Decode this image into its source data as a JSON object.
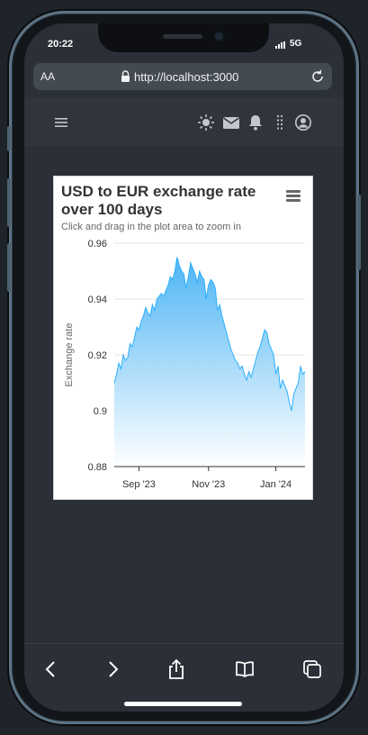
{
  "status": {
    "time": "20:22",
    "network": "5G"
  },
  "browser": {
    "text_size_label": "AA",
    "url": "http://localhost:3000"
  },
  "icons": {
    "menu": "hamburger-icon",
    "theme": "sun-icon",
    "mail": "envelope-icon",
    "notifications": "bell-icon",
    "apps": "grip-dots-icon",
    "account": "user-circle-icon",
    "back": "chevron-left-icon",
    "forward": "chevron-right-icon",
    "share": "share-icon",
    "bookmarks": "book-icon",
    "tabs": "tabs-icon"
  },
  "colors": {
    "series_line": "#2caffe",
    "area_top": "#4db5f5",
    "area_bottom": "#ffffff",
    "page_bg": "#2b3038"
  },
  "chart_data": {
    "type": "area",
    "title": "USD to EUR exchange rate over 100 days",
    "subtitle": "Click and drag in the plot area to zoom in",
    "ylabel": "Exchange rate",
    "xlabel": "",
    "ylim": [
      0.88,
      0.96
    ],
    "yticks": [
      "0.96",
      "0.94",
      "0.92",
      "0.9",
      "0.88"
    ],
    "xticks": [
      {
        "label": "Sep '23",
        "day": 11
      },
      {
        "label": "Nov '23",
        "day": 42
      },
      {
        "label": "Jan '24",
        "day": 72
      }
    ],
    "legend": "none",
    "grid": "horizontal",
    "series": [
      {
        "values": [
          0.91,
          0.913,
          0.917,
          0.915,
          0.92,
          0.918,
          0.919,
          0.924,
          0.923,
          0.926,
          0.93,
          0.929,
          0.932,
          0.934,
          0.937,
          0.935,
          0.934,
          0.938,
          0.936,
          0.94,
          0.941,
          0.942,
          0.941,
          0.943,
          0.945,
          0.948,
          0.947,
          0.95,
          0.955,
          0.952,
          0.95,
          0.949,
          0.944,
          0.948,
          0.953,
          0.951,
          0.949,
          0.946,
          0.95,
          0.948,
          0.947,
          0.94,
          0.945,
          0.947,
          0.946,
          0.944,
          0.936,
          0.938,
          0.934,
          0.931,
          0.928,
          0.925,
          0.922,
          0.92,
          0.918,
          0.917,
          0.915,
          0.916,
          0.913,
          0.911,
          0.914,
          0.912,
          0.915,
          0.918,
          0.921,
          0.923,
          0.926,
          0.929,
          0.928,
          0.924,
          0.922,
          0.92,
          0.913,
          0.916,
          0.908,
          0.911,
          0.909,
          0.907,
          0.903,
          0.9,
          0.906,
          0.908,
          0.91,
          0.916,
          0.913,
          0.914
        ]
      }
    ]
  }
}
